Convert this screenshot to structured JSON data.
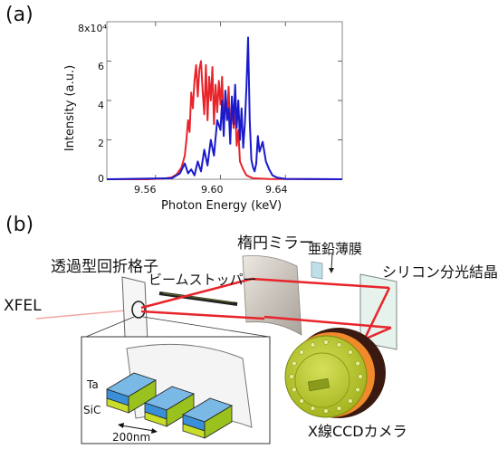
{
  "panel_a": {
    "label": "(a)",
    "ylabel": "Intensity (a.u.)",
    "xlabel": "Photon Energy (keV)",
    "y_exponent_label": "8x10⁴",
    "yticks": [
      "0",
      "2",
      "4",
      "6"
    ],
    "xticks": [
      "9.56",
      "9.60",
      "9.64"
    ]
  },
  "chart_data": {
    "type": "line",
    "xlabel": "Photon Energy (keV)",
    "ylabel": "Intensity (a.u.)",
    "xlim": [
      9.53,
      9.675
    ],
    "ylim": [
      0,
      80000
    ],
    "y_scale_label": "8x10⁴",
    "xticks": [
      9.56,
      9.6,
      9.64
    ],
    "yticks": [
      0,
      20000,
      40000,
      60000
    ],
    "series": [
      {
        "color": "#e8242b",
        "x": [
          9.53,
          9.555,
          9.565,
          9.57,
          9.573,
          9.576,
          9.578,
          9.579,
          9.58,
          9.581,
          9.582,
          9.583,
          9.584,
          9.585,
          9.586,
          9.587,
          9.588,
          9.589,
          9.59,
          9.591,
          9.592,
          9.593,
          9.594,
          9.595,
          9.596,
          9.597,
          9.598,
          9.599,
          9.6,
          9.601,
          9.602,
          9.603,
          9.604,
          9.605,
          9.606,
          9.607,
          9.608,
          9.609,
          9.61,
          9.611,
          9.612,
          9.614,
          9.616,
          9.62,
          9.63,
          9.675
        ],
        "y": [
          0,
          0,
          300,
          900,
          2500,
          6000,
          12000,
          20000,
          30000,
          24000,
          44000,
          36000,
          50000,
          58000,
          42000,
          56000,
          60000,
          45000,
          33000,
          58000,
          30000,
          52000,
          40000,
          57000,
          28000,
          48000,
          34000,
          50000,
          38000,
          52000,
          25000,
          44000,
          31000,
          47000,
          22000,
          38000,
          26000,
          35000,
          17000,
          25000,
          9000,
          5000,
          2000,
          500,
          100,
          0
        ]
      },
      {
        "color": "#1a1acc",
        "x": [
          9.53,
          9.57,
          9.575,
          9.578,
          9.58,
          9.582,
          9.584,
          9.586,
          9.588,
          9.59,
          9.592,
          9.594,
          9.596,
          9.598,
          9.6,
          9.601,
          9.602,
          9.603,
          9.604,
          9.605,
          9.606,
          9.607,
          9.608,
          9.609,
          9.61,
          9.611,
          9.612,
          9.613,
          9.614,
          9.615,
          9.616,
          9.617,
          9.618,
          9.619,
          9.62,
          9.621,
          9.622,
          9.623,
          9.624,
          9.626,
          9.628,
          9.63,
          9.632,
          9.635,
          9.64,
          9.675
        ],
        "y": [
          0,
          500,
          3000,
          8000,
          3000,
          5000,
          2000,
          9000,
          4000,
          15000,
          7000,
          20000,
          12000,
          30000,
          25000,
          40000,
          22000,
          45000,
          30000,
          36000,
          18000,
          42000,
          28000,
          48000,
          26000,
          40000,
          20000,
          36000,
          16000,
          28000,
          47000,
          72000,
          30000,
          10000,
          6000,
          4000,
          8000,
          22000,
          14000,
          19000,
          9000,
          5000,
          2000,
          800,
          200,
          0
        ]
      }
    ]
  },
  "panel_b": {
    "label": "(b)",
    "labels": {
      "xfel": "XFEL",
      "grating": "透過型回折格子",
      "beamstop": "ビームストッパー",
      "mirror": "楕円ミラー",
      "zinc": "亜鉛薄膜",
      "crystal": "シリコン分光結晶",
      "camera": "X線CCDカメラ",
      "ta": "Ta",
      "sic": "SiC",
      "pitch": "200nm"
    }
  },
  "colors": {
    "red": "#e8242b",
    "blue": "#1a1acc",
    "camera": "#b9c82c",
    "camera_ring": "#f08a2a"
  }
}
